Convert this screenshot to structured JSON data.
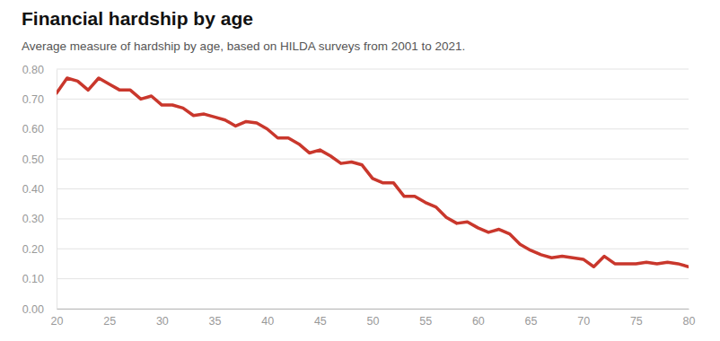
{
  "chart_data": {
    "type": "line",
    "title": "Financial hardship by age",
    "subtitle": "Average measure of hardship by age, based on HILDA surveys from 2001 to 2021.",
    "x": [
      20,
      21,
      22,
      23,
      24,
      25,
      26,
      27,
      28,
      29,
      30,
      31,
      32,
      33,
      34,
      35,
      36,
      37,
      38,
      39,
      40,
      41,
      42,
      43,
      44,
      45,
      46,
      47,
      48,
      49,
      50,
      51,
      52,
      53,
      54,
      55,
      56,
      57,
      58,
      59,
      60,
      61,
      62,
      63,
      64,
      65,
      66,
      67,
      68,
      69,
      70,
      71,
      72,
      73,
      74,
      75,
      76,
      77,
      78,
      79,
      80
    ],
    "values": [
      0.72,
      0.77,
      0.76,
      0.73,
      0.77,
      0.75,
      0.73,
      0.73,
      0.7,
      0.71,
      0.68,
      0.68,
      0.67,
      0.645,
      0.65,
      0.64,
      0.63,
      0.61,
      0.625,
      0.62,
      0.6,
      0.57,
      0.57,
      0.55,
      0.52,
      0.53,
      0.51,
      0.485,
      0.49,
      0.48,
      0.435,
      0.42,
      0.42,
      0.375,
      0.375,
      0.355,
      0.34,
      0.305,
      0.285,
      0.29,
      0.27,
      0.255,
      0.265,
      0.25,
      0.215,
      0.195,
      0.18,
      0.17,
      0.175,
      0.17,
      0.165,
      0.14,
      0.175,
      0.15,
      0.15,
      0.15,
      0.155,
      0.15,
      0.155,
      0.15,
      0.14
    ],
    "color": "#c9372c",
    "xlim": [
      20,
      80
    ],
    "ylim": [
      0,
      0.8
    ],
    "xticks": [
      20,
      25,
      30,
      35,
      40,
      45,
      50,
      55,
      60,
      65,
      70,
      75,
      80
    ],
    "yticks": [
      {
        "value": 0,
        "label": "0.00"
      },
      {
        "value": 0.1,
        "label": "0.10"
      },
      {
        "value": 0.2,
        "label": "0.20"
      },
      {
        "value": 0.3,
        "label": "0.30"
      },
      {
        "value": 0.4,
        "label": "0.40"
      },
      {
        "value": 0.5,
        "label": "0.50"
      },
      {
        "value": 0.6,
        "label": "0.60"
      },
      {
        "value": 0.7,
        "label": "0.70"
      },
      {
        "value": 0.8,
        "label": "0.80"
      }
    ],
    "grid": true
  }
}
